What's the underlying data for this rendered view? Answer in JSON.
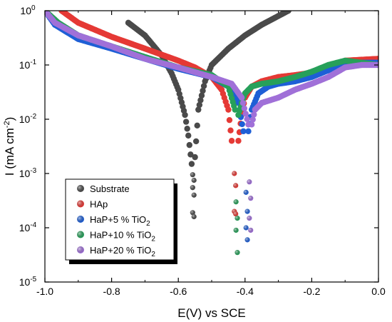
{
  "chart_data": {
    "type": "scatter",
    "xlabel": "E(V) vs SCE",
    "ylabel_main": "I (mA cm",
    "ylabel_sup": "-2",
    "ylabel_close": ")",
    "xlim": [
      -1.0,
      0.0
    ],
    "ylim": [
      1e-05,
      1
    ],
    "y_scale": "log",
    "grid": false,
    "legend_placement": "bottom-left",
    "x_ticks": [
      -1.0,
      -0.8,
      -0.6,
      -0.4,
      -0.2,
      0.0
    ],
    "x_tick_labels": [
      "-1.0",
      "-0.8",
      "-0.6",
      "-0.4",
      "-0.2",
      "0.0"
    ],
    "y_ticks": [
      {
        "value": 1e-05,
        "base": "10",
        "exp": "-5"
      },
      {
        "value": 0.0001,
        "base": "10",
        "exp": "-4"
      },
      {
        "value": 0.001,
        "base": "10",
        "exp": "-3"
      },
      {
        "value": 0.01,
        "base": "10",
        "exp": "-2"
      },
      {
        "value": 0.1,
        "base": "10",
        "exp": "-1"
      },
      {
        "value": 1,
        "base": "10",
        "exp": "0"
      }
    ],
    "series": [
      {
        "name": "Substrate",
        "label_main": "Substrate",
        "label_sub": "",
        "color": "#4a4a4a",
        "ecorr": -0.555,
        "cathodic": [
          [
            -0.75,
            0.6
          ],
          [
            -0.7,
            0.35
          ],
          [
            -0.65,
            0.15
          ],
          [
            -0.62,
            0.07
          ],
          [
            -0.6,
            0.035
          ],
          [
            -0.58,
            0.012
          ],
          [
            -0.57,
            0.005
          ],
          [
            -0.56,
            0.0015
          ]
        ],
        "anodic": [
          [
            -0.55,
            0.002
          ],
          [
            -0.54,
            0.015
          ],
          [
            -0.52,
            0.05
          ],
          [
            -0.5,
            0.1
          ],
          [
            -0.45,
            0.2
          ],
          [
            -0.4,
            0.35
          ],
          [
            -0.35,
            0.55
          ],
          [
            -0.3,
            0.8
          ],
          [
            -0.27,
            1.0
          ]
        ],
        "tail": [
          0.00095,
          0.00075,
          0.00055,
          0.0004,
          0.00019,
          0.00016
        ]
      },
      {
        "name": "HAp",
        "label_main": "HAp",
        "label_sub": "",
        "color": "#e53935",
        "ecorr": -0.43,
        "cathodic": [
          [
            -0.95,
            1.0
          ],
          [
            -0.9,
            0.6
          ],
          [
            -0.8,
            0.33
          ],
          [
            -0.7,
            0.2
          ],
          [
            -0.6,
            0.12
          ],
          [
            -0.55,
            0.09
          ],
          [
            -0.5,
            0.06
          ],
          [
            -0.47,
            0.035
          ],
          [
            -0.45,
            0.015
          ],
          [
            -0.44,
            0.004
          ]
        ],
        "anodic": [
          [
            -0.42,
            0.004
          ],
          [
            -0.41,
            0.012
          ],
          [
            -0.4,
            0.025
          ],
          [
            -0.38,
            0.04
          ],
          [
            -0.35,
            0.05
          ],
          [
            -0.3,
            0.06
          ],
          [
            -0.25,
            0.065
          ],
          [
            -0.2,
            0.072
          ],
          [
            -0.15,
            0.09
          ],
          [
            -0.1,
            0.12
          ],
          [
            -0.05,
            0.125
          ],
          [
            0.0,
            0.13
          ]
        ],
        "tail": [
          0.001,
          0.0006,
          0.0002,
          0.00018
        ]
      },
      {
        "name": "HaP+5 % TiO2",
        "label_main": "HaP+5 % TiO",
        "label_sub": "2",
        "color": "#1e5fd6",
        "ecorr": -0.395,
        "cathodic": [
          [
            -1.0,
            1.0
          ],
          [
            -0.97,
            0.55
          ],
          [
            -0.9,
            0.3
          ],
          [
            -0.8,
            0.2
          ],
          [
            -0.7,
            0.13
          ],
          [
            -0.6,
            0.085
          ],
          [
            -0.5,
            0.06
          ],
          [
            -0.45,
            0.04
          ],
          [
            -0.42,
            0.02
          ],
          [
            -0.405,
            0.006
          ]
        ],
        "anodic": [
          [
            -0.39,
            0.006
          ],
          [
            -0.38,
            0.015
          ],
          [
            -0.36,
            0.03
          ],
          [
            -0.33,
            0.04
          ],
          [
            -0.3,
            0.045
          ],
          [
            -0.25,
            0.05
          ],
          [
            -0.2,
            0.06
          ],
          [
            -0.15,
            0.08
          ],
          [
            -0.1,
            0.11
          ],
          [
            -0.05,
            0.11
          ],
          [
            0.0,
            0.11
          ]
        ],
        "tail": [
          0.00045,
          0.0002,
          0.0001,
          6e-05
        ]
      },
      {
        "name": "HaP+10 % TiO2",
        "label_main": "HaP+10 % TiO",
        "label_sub": "2",
        "color": "#27a05a",
        "ecorr": -0.425,
        "cathodic": [
          [
            -1.0,
            1.0
          ],
          [
            -0.96,
            0.6
          ],
          [
            -0.9,
            0.35
          ],
          [
            -0.8,
            0.22
          ],
          [
            -0.7,
            0.14
          ],
          [
            -0.6,
            0.09
          ],
          [
            -0.5,
            0.065
          ],
          [
            -0.45,
            0.04
          ],
          [
            -0.43,
            0.015
          ]
        ],
        "anodic": [
          [
            -0.42,
            0.012
          ],
          [
            -0.41,
            0.02
          ],
          [
            -0.4,
            0.03
          ],
          [
            -0.38,
            0.04
          ],
          [
            -0.35,
            0.045
          ],
          [
            -0.3,
            0.05
          ],
          [
            -0.25,
            0.06
          ],
          [
            -0.2,
            0.075
          ],
          [
            -0.15,
            0.1
          ],
          [
            -0.1,
            0.12
          ],
          [
            -0.05,
            0.11
          ],
          [
            0.0,
            0.1
          ]
        ],
        "tail": [
          0.0003,
          0.00015,
          9e-05,
          3.5e-05
        ]
      },
      {
        "name": "HaP+20 % TiO2",
        "label_main": "HaP+20 % TiO",
        "label_sub": "2",
        "color": "#a070d8",
        "ecorr": -0.385,
        "cathodic": [
          [
            -1.0,
            1.0
          ],
          [
            -0.97,
            0.6
          ],
          [
            -0.9,
            0.35
          ],
          [
            -0.8,
            0.22
          ],
          [
            -0.7,
            0.13
          ],
          [
            -0.6,
            0.09
          ],
          [
            -0.5,
            0.06
          ],
          [
            -0.44,
            0.045
          ],
          [
            -0.41,
            0.025
          ],
          [
            -0.39,
            0.008
          ]
        ],
        "anodic": [
          [
            -0.38,
            0.008
          ],
          [
            -0.37,
            0.015
          ],
          [
            -0.35,
            0.02
          ],
          [
            -0.3,
            0.025
          ],
          [
            -0.25,
            0.035
          ],
          [
            -0.2,
            0.045
          ],
          [
            -0.15,
            0.06
          ],
          [
            -0.1,
            0.09
          ],
          [
            -0.05,
            0.1
          ],
          [
            0.0,
            0.1
          ]
        ],
        "tail": [
          0.0007,
          0.00035,
          0.00015,
          9e-05
        ]
      }
    ]
  }
}
